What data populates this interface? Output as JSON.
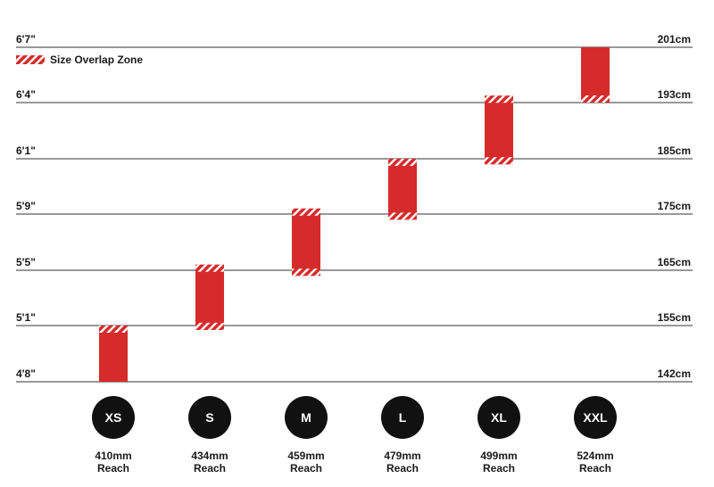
{
  "chart_data": {
    "type": "bar",
    "legend": {
      "label": "Size Overlap Zone",
      "position": "top-left"
    },
    "y_axis_left_ticks": [
      "6'7\"",
      "6'4\"",
      "6'1\"",
      "5'9\"",
      "5'5\"",
      "5'1\"",
      "4'8\""
    ],
    "y_axis_right_ticks": [
      "201cm",
      "193cm",
      "185cm",
      "175cm",
      "165cm",
      "155cm",
      "142cm"
    ],
    "grid": true,
    "categories": [
      "XS",
      "S",
      "M",
      "L",
      "XL",
      "XXL"
    ],
    "reach": [
      "410mm",
      "434mm",
      "459mm",
      "479mm",
      "499mm",
      "524mm"
    ],
    "reach_unit_label": "Reach",
    "ranges_cm": [
      {
        "size": "XS",
        "low": 142,
        "high": 155,
        "overlap_low": false,
        "overlap_high": true
      },
      {
        "size": "S",
        "low": 154,
        "high": 166,
        "overlap_low": true,
        "overlap_high": true
      },
      {
        "size": "M",
        "low": 164,
        "high": 176,
        "overlap_low": true,
        "overlap_high": true
      },
      {
        "size": "L",
        "low": 174,
        "high": 185,
        "overlap_low": true,
        "overlap_high": true
      },
      {
        "size": "XL",
        "low": 184,
        "high": 194,
        "overlap_low": true,
        "overlap_high": true
      },
      {
        "size": "XXL",
        "low": 193,
        "high": 201,
        "overlap_low": true,
        "overlap_high": false
      }
    ]
  },
  "colors": {
    "bar": "#d62b2b",
    "stripe": "#ffffff",
    "grid": "#333333",
    "circle": "#111111"
  }
}
